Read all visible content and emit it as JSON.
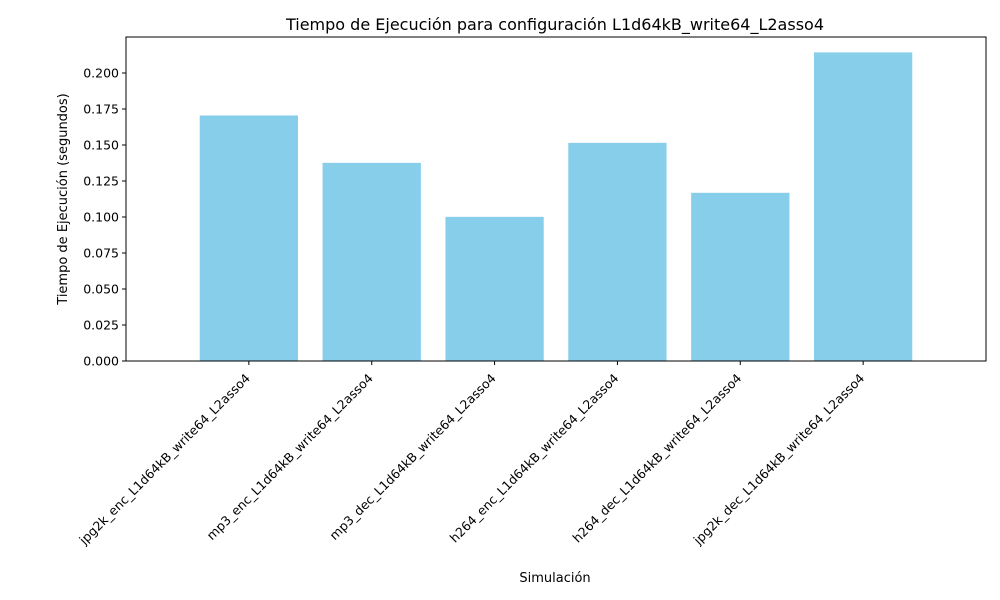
{
  "chart_data": {
    "type": "bar",
    "title": "Tiempo de Ejecución para configuración L1d64kB_write64_L2asso4",
    "xlabel": "Simulación",
    "ylabel": "Tiempo de Ejecución (segundos)",
    "categories": [
      "jpg2k_enc_L1d64kB_write64_L2asso4",
      "mp3_enc_L1d64kB_write64_L2asso4",
      "mp3_dec_L1d64kB_write64_L2asso4",
      "h264_enc_L1d64kB_write64_L2asso4",
      "h264_dec_L1d64kB_write64_L2asso4",
      "jpg2k_dec_L1d64kB_write64_L2asso4"
    ],
    "values": [
      0.1705,
      0.1376,
      0.1001,
      0.1515,
      0.1168,
      0.2143
    ],
    "ylim": [
      0,
      0.225
    ],
    "yticks": [
      "0.000",
      "0.025",
      "0.050",
      "0.075",
      "0.100",
      "0.125",
      "0.150",
      "0.175",
      "0.200"
    ],
    "bar_color": "#87ceeb",
    "grid": false,
    "legend": "none"
  }
}
